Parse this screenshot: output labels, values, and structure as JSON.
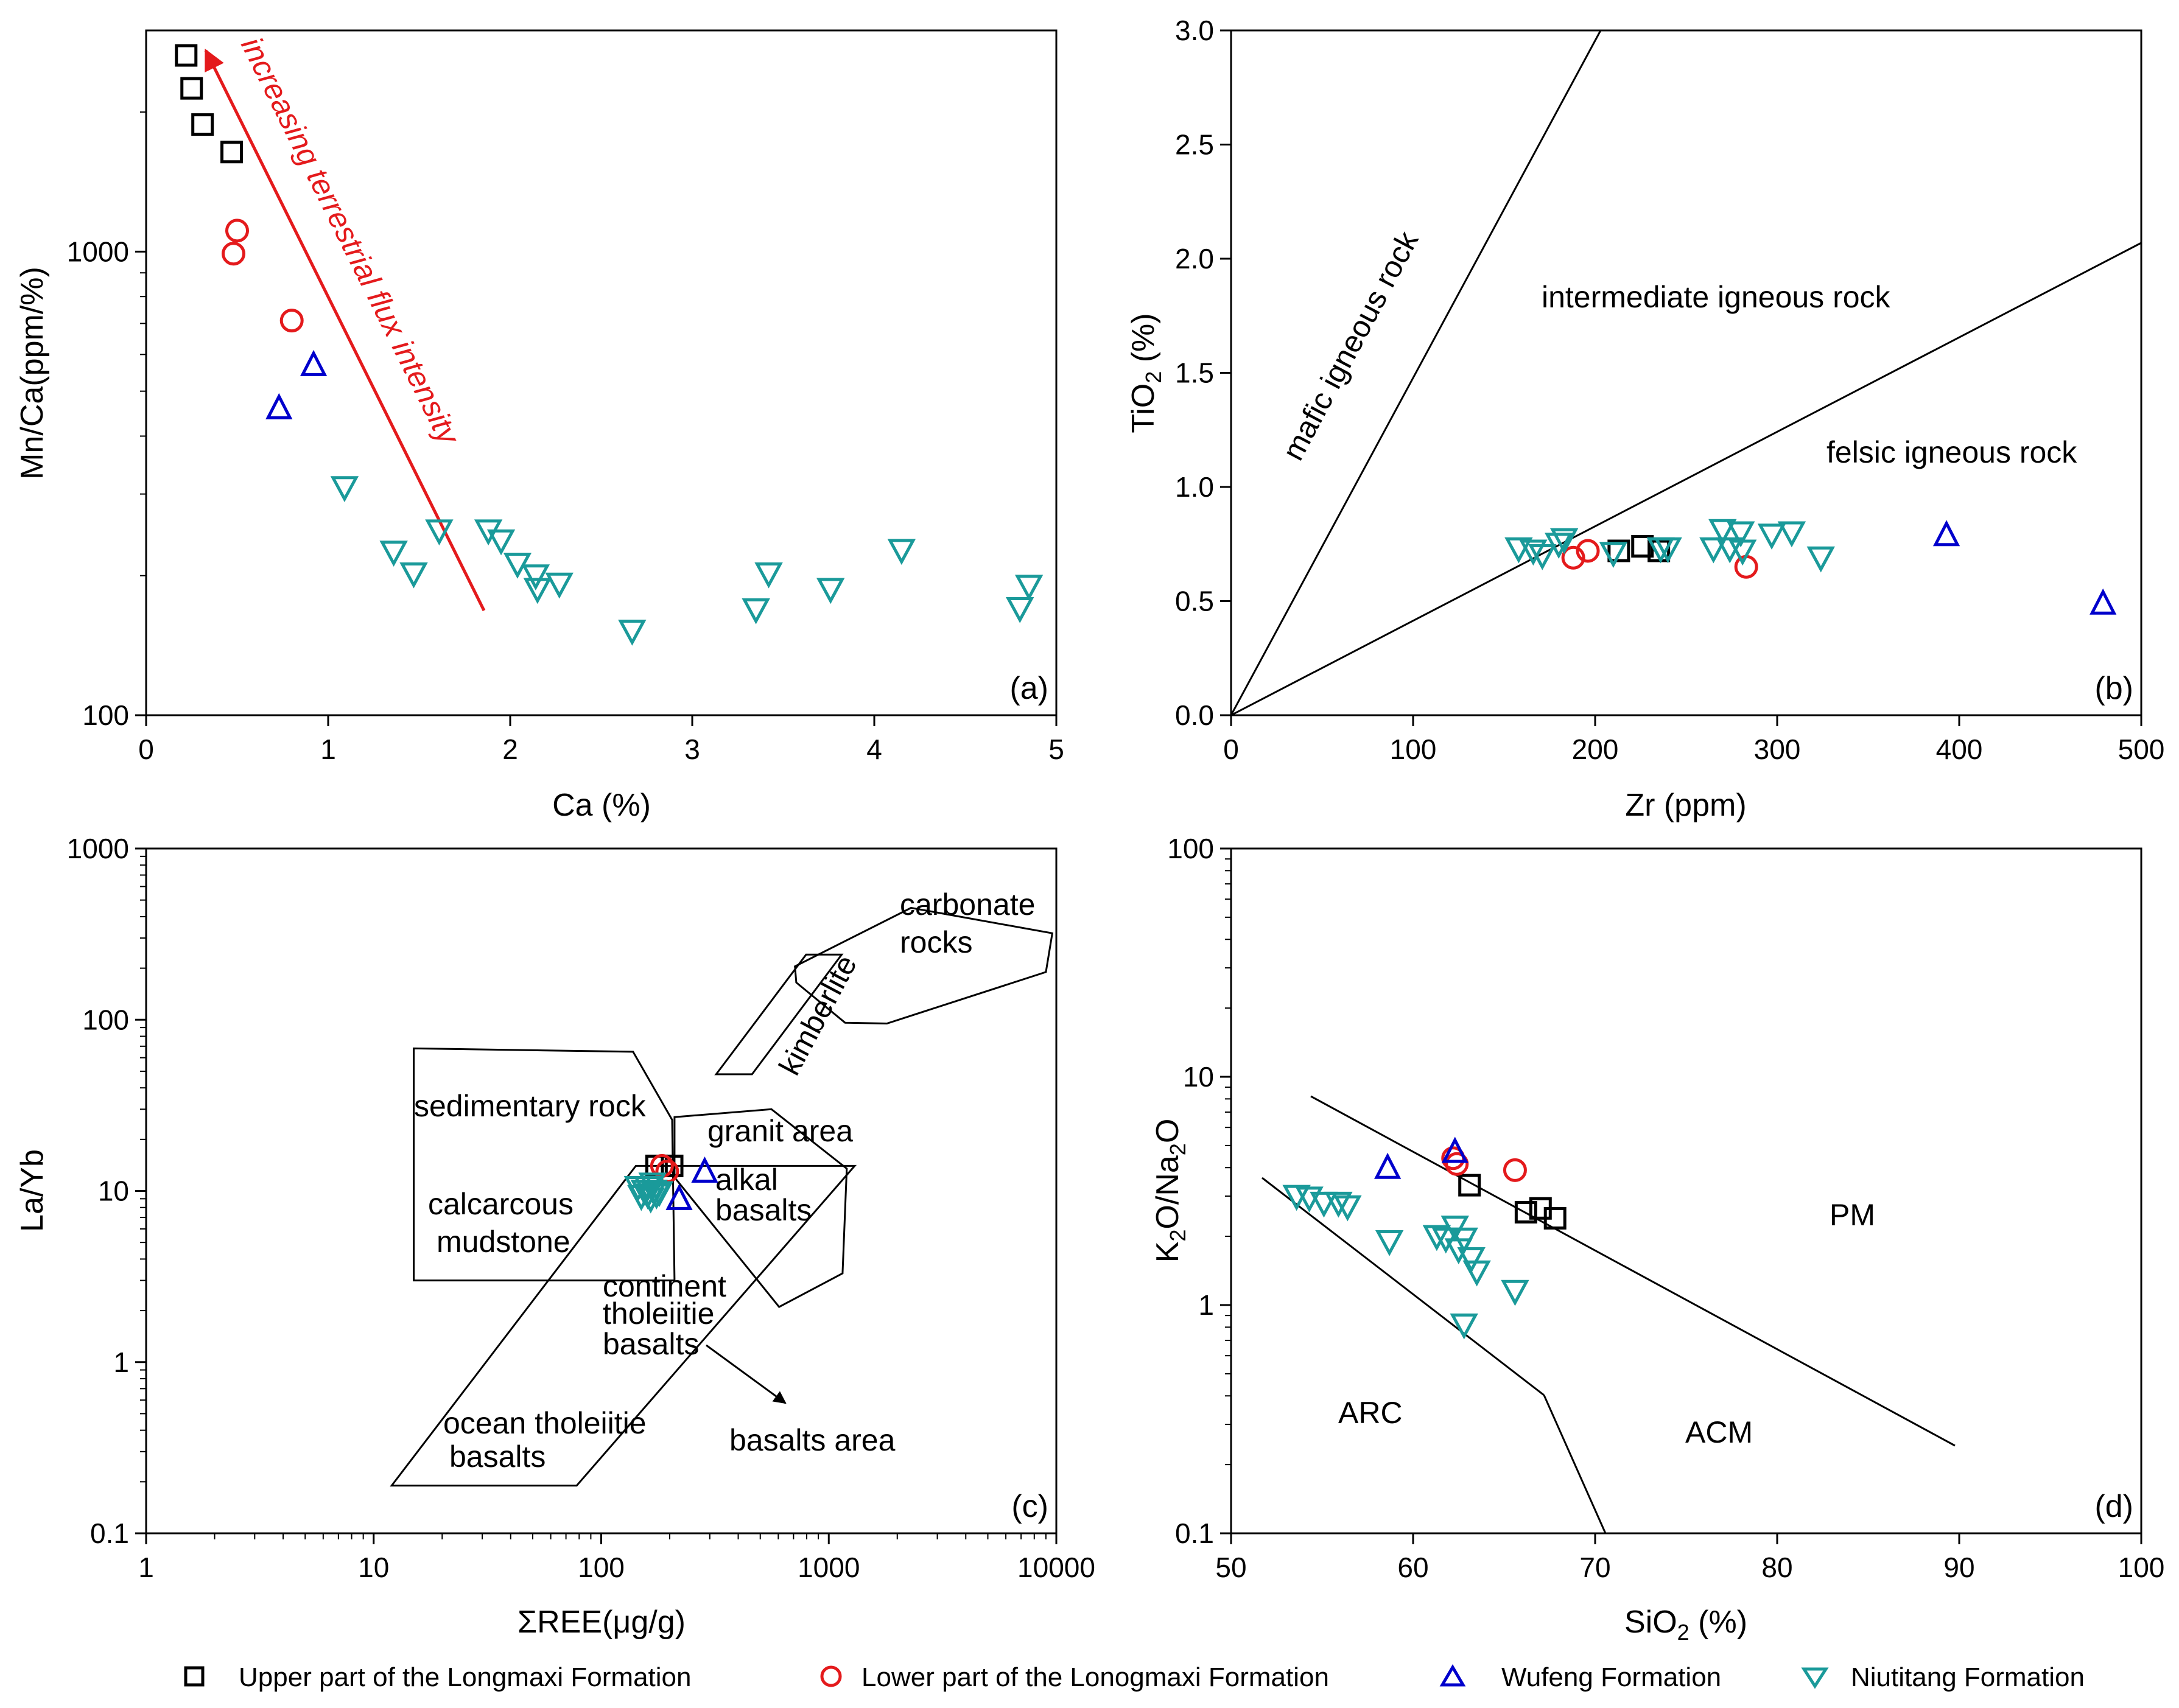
{
  "colors": {
    "longmaxi_upper": "#000000",
    "longmaxi_lower": "#e41a1c",
    "wufeng": "#0000cc",
    "niutitang": "#1a9a9a",
    "arrow": "#e41a1c"
  },
  "legend": [
    {
      "label": "Upper part of the Longmaxi Formation",
      "marker": "square",
      "color": "#000000"
    },
    {
      "label": "Lower part of the Lonogmaxi Formation",
      "marker": "circle",
      "color": "#e41a1c"
    },
    {
      "label": "Wufeng Formation",
      "marker": "triangle-up",
      "color": "#0000cc"
    },
    {
      "label": "Niutitang Formation",
      "marker": "triangle-down",
      "color": "#1a9a9a"
    }
  ],
  "chart_data": [
    {
      "panel": "(a)",
      "type": "scatter",
      "xlabel": "Ca (%)",
      "ylabel": "Mn/Ca(ppm/%)",
      "xscale": "linear",
      "yscale": "log",
      "xlim": [
        0,
        5
      ],
      "ylim": [
        100,
        3000
      ],
      "xticks": [
        0,
        1,
        2,
        3,
        4,
        5
      ],
      "xtick_labels": [
        "0",
        "1",
        "2",
        "3",
        "4",
        "5"
      ],
      "yticks": [
        100,
        1000
      ],
      "ytick_labels": [
        "100",
        "1000"
      ],
      "annotation": "increasing terrestrial flux intensity",
      "arrow": {
        "from": [
          1.85,
          170
        ],
        "to": [
          0.33,
          2700
        ]
      },
      "series": [
        {
          "name": "Upper part of the Longmaxi Formation",
          "marker": "square",
          "color": "#000000",
          "points": [
            [
              0.22,
              2650
            ],
            [
              0.25,
              2250
            ],
            [
              0.31,
              1880
            ],
            [
              0.47,
              1640
            ]
          ]
        },
        {
          "name": "Lower part of the Lonogmaxi Formation",
          "marker": "circle",
          "color": "#e41a1c",
          "points": [
            [
              0.5,
              1110
            ],
            [
              0.48,
              990
            ],
            [
              0.8,
              710
            ]
          ]
        },
        {
          "name": "Wufeng Formation",
          "marker": "triangle-up",
          "color": "#0000cc",
          "points": [
            [
              0.92,
              570
            ],
            [
              0.73,
              460
            ]
          ]
        },
        {
          "name": "Niutitang Formation",
          "marker": "triangle-down",
          "color": "#1a9a9a",
          "points": [
            [
              1.09,
              310
            ],
            [
              1.36,
              225
            ],
            [
              1.47,
              202
            ],
            [
              1.61,
              250
            ],
            [
              1.88,
              250
            ],
            [
              1.95,
              238
            ],
            [
              2.04,
              212
            ],
            [
              2.14,
              200
            ],
            [
              2.15,
              187
            ],
            [
              2.27,
              192
            ],
            [
              2.67,
              152
            ],
            [
              3.35,
              169
            ],
            [
              3.42,
              202
            ],
            [
              3.76,
              187
            ],
            [
              4.15,
              227
            ],
            [
              4.8,
              170
            ],
            [
              4.85,
              190
            ]
          ]
        }
      ]
    },
    {
      "panel": "(b)",
      "type": "scatter",
      "xlabel": "Zr (ppm)",
      "ylabel": "TiO2 (%)",
      "xscale": "linear",
      "yscale": "linear",
      "xlim": [
        0,
        500
      ],
      "ylim": [
        0,
        3.0
      ],
      "xticks": [
        0,
        100,
        200,
        300,
        400,
        500
      ],
      "xtick_labels": [
        "0",
        "100",
        "200",
        "300",
        "400",
        "500"
      ],
      "yticks": [
        0,
        0.5,
        1.0,
        1.5,
        2.0,
        2.5,
        3.0
      ],
      "ytick_labels": [
        "0.0",
        "0.5",
        "1.0",
        "1.5",
        "2.0",
        "2.5",
        "3.0"
      ],
      "boundary_lines": [
        {
          "from": [
            0,
            0
          ],
          "to": [
            203,
            3.0
          ]
        },
        {
          "from": [
            0,
            0
          ],
          "to": [
            500,
            2.07
          ]
        }
      ],
      "regions": [
        "mafic igneous rock",
        "intermediate igneous rock",
        "felsic igneous rock"
      ],
      "series": [
        {
          "name": "Upper part of the Longmaxi Formation",
          "marker": "square",
          "color": "#000000",
          "points": [
            [
              213,
              0.72
            ],
            [
              226,
              0.74
            ],
            [
              235,
              0.72
            ]
          ]
        },
        {
          "name": "Lower part of the Lonogmaxi Formation",
          "marker": "circle",
          "color": "#e41a1c",
          "points": [
            [
              188,
              0.69
            ],
            [
              196,
              0.72
            ],
            [
              283,
              0.65
            ]
          ]
        },
        {
          "name": "Wufeng Formation",
          "marker": "triangle-up",
          "color": "#0000cc",
          "points": [
            [
              393,
              0.79
            ],
            [
              479,
              0.49
            ]
          ]
        },
        {
          "name": "Niutitang Formation",
          "marker": "triangle-down",
          "color": "#1a9a9a",
          "points": [
            [
              158,
              0.73
            ],
            [
              166,
              0.72
            ],
            [
              171,
              0.7
            ],
            [
              180,
              0.75
            ],
            [
              183,
              0.77
            ],
            [
              210,
              0.71
            ],
            [
              236,
              0.73
            ],
            [
              240,
              0.73
            ],
            [
              265,
              0.73
            ],
            [
              270,
              0.81
            ],
            [
              274,
              0.73
            ],
            [
              280,
              0.8
            ],
            [
              281,
              0.72
            ],
            [
              297,
              0.79
            ],
            [
              308,
              0.8
            ],
            [
              324,
              0.69
            ]
          ]
        }
      ]
    },
    {
      "panel": "(c)",
      "type": "scatter",
      "xlabel": "ΣREE(μg/g)",
      "ylabel": "La/Yb",
      "xscale": "log",
      "yscale": "log",
      "xlim": [
        1,
        10000
      ],
      "ylim": [
        0.1,
        1000
      ],
      "xticks": [
        1,
        10,
        100,
        1000,
        10000
      ],
      "xtick_labels": [
        "1",
        "10",
        "100",
        "1000",
        "10000"
      ],
      "yticks": [
        0.1,
        1,
        10,
        100,
        1000
      ],
      "ytick_labels": [
        "0.1",
        "1",
        "10",
        "100",
        "1000"
      ],
      "regions": [
        "carbonate",
        "rocks",
        "kimberlite",
        "sedimentary rock",
        "granit area",
        "calcarcous",
        "mudstone",
        "alkal",
        "basalts",
        "continent",
        "tholeiitie",
        "basalts",
        "ocean tholeiitie",
        "basalts",
        "basalts area"
      ],
      "polygons": [
        {
          "name": "sedimentary rock",
          "points": [
            [
              15,
              68
            ],
            [
              138,
              65
            ],
            [
              205,
              26
            ],
            [
              210,
              3
            ],
            [
              15,
              3
            ]
          ]
        },
        {
          "name": "granit area",
          "points": [
            [
              210,
              27
            ],
            [
              560,
              30
            ],
            [
              1200,
              13.5
            ],
            [
              1150,
              3.3
            ],
            [
              605,
              2.1
            ],
            [
              210,
              12
            ]
          ]
        },
        {
          "name": "basalts area",
          "points": [
            [
              142,
              14
            ],
            [
              1300,
              14
            ],
            [
              78,
              0.19
            ],
            [
              12,
              0.19
            ]
          ]
        },
        {
          "name": "kimberlite",
          "points": [
            [
              320,
              48
            ],
            [
              460,
              48
            ],
            [
              1140,
              240
            ],
            [
              795,
              240
            ]
          ]
        },
        {
          "name": "carbonate rocks",
          "points": [
            [
              710,
              205
            ],
            [
              2300,
              450
            ],
            [
              9600,
              320
            ],
            [
              9000,
              190
            ],
            [
              1800,
              95
            ],
            [
              1180,
              96
            ],
            [
              720,
              165
            ]
          ]
        }
      ],
      "arrow": {
        "from": [
          500,
          1.0
        ],
        "to": [
          900,
          0.55
        ]
      },
      "series": [
        {
          "name": "Upper part of the Longmaxi Formation",
          "marker": "square",
          "color": "#000000",
          "points": [
            [
              175,
              14
            ],
            [
              205,
              14
            ]
          ]
        },
        {
          "name": "Lower part of the Lonogmaxi Formation",
          "marker": "circle",
          "color": "#e41a1c",
          "points": [
            [
              185,
              14
            ],
            [
              195,
              13
            ]
          ]
        },
        {
          "name": "Wufeng Formation",
          "marker": "triangle-up",
          "color": "#0000cc",
          "points": [
            [
              285,
              13
            ],
            [
              220,
              9
            ]
          ]
        },
        {
          "name": "Niutitang Formation",
          "marker": "triangle-down",
          "color": "#1a9a9a",
          "points": [
            [
              145,
              10.5
            ],
            [
              155,
              10
            ],
            [
              160,
              9.5
            ],
            [
              165,
              9
            ],
            [
              170,
              10
            ],
            [
              175,
              9.5
            ],
            [
              180,
              9.8
            ],
            [
              168,
              11
            ],
            [
              160,
              10.5
            ],
            [
              150,
              9.3
            ]
          ]
        }
      ]
    },
    {
      "panel": "(d)",
      "type": "scatter",
      "xlabel": "SiO2 (%)",
      "ylabel": "K2O/Na2O",
      "xscale": "linear",
      "yscale": "log",
      "xlim": [
        50,
        100
      ],
      "ylim": [
        0.1,
        100
      ],
      "xticks": [
        50,
        60,
        70,
        80,
        90,
        100
      ],
      "xtick_labels": [
        "50",
        "60",
        "70",
        "80",
        "90",
        "100"
      ],
      "yticks": [
        0.1,
        1,
        10,
        100
      ],
      "ytick_labels": [
        "0.1",
        "1",
        "10",
        "100"
      ],
      "regions": [
        "PM",
        "ARC",
        "ACM"
      ],
      "boundary_lines": [
        {
          "from": [
            54.4,
            8.3
          ],
          "to": [
            89.8,
            0.25
          ]
        },
        {
          "from": [
            51.7,
            3.65
          ],
          "to": [
            67.2,
            0.4
          ]
        },
        {
          "from": [
            67.2,
            0.4
          ],
          "to": [
            70.6,
            0.1
          ]
        }
      ],
      "series": [
        {
          "name": "Upper part of the Longmaxi Formation",
          "marker": "square",
          "color": "#000000",
          "points": [
            [
              63.1,
              3.35
            ],
            [
              66.2,
              2.55
            ],
            [
              67.0,
              2.65
            ],
            [
              67.8,
              2.4
            ]
          ]
        },
        {
          "name": "Lower part of the Lonogmaxi Formation",
          "marker": "circle",
          "color": "#e41a1c",
          "points": [
            [
              62.2,
              4.4
            ],
            [
              62.4,
              4.15
            ],
            [
              65.6,
              3.9
            ]
          ]
        },
        {
          "name": "Wufeng Formation",
          "marker": "triangle-up",
          "color": "#0000cc",
          "points": [
            [
              58.6,
              4.0
            ],
            [
              62.3,
              4.7
            ]
          ]
        },
        {
          "name": "Niutitang Formation",
          "marker": "triangle-down",
          "color": "#1a9a9a",
          "points": [
            [
              53.6,
              3.0
            ],
            [
              54.3,
              2.95
            ],
            [
              55.1,
              2.8
            ],
            [
              55.9,
              2.8
            ],
            [
              56.4,
              2.7
            ],
            [
              58.7,
              1.9
            ],
            [
              61.3,
              2.0
            ],
            [
              61.8,
              1.95
            ],
            [
              62.3,
              2.2
            ],
            [
              62.5,
              1.75
            ],
            [
              62.8,
              1.95
            ],
            [
              63.2,
              1.6
            ],
            [
              63.5,
              1.4
            ],
            [
              65.6,
              1.15
            ],
            [
              62.8,
              0.82
            ]
          ]
        }
      ]
    }
  ]
}
